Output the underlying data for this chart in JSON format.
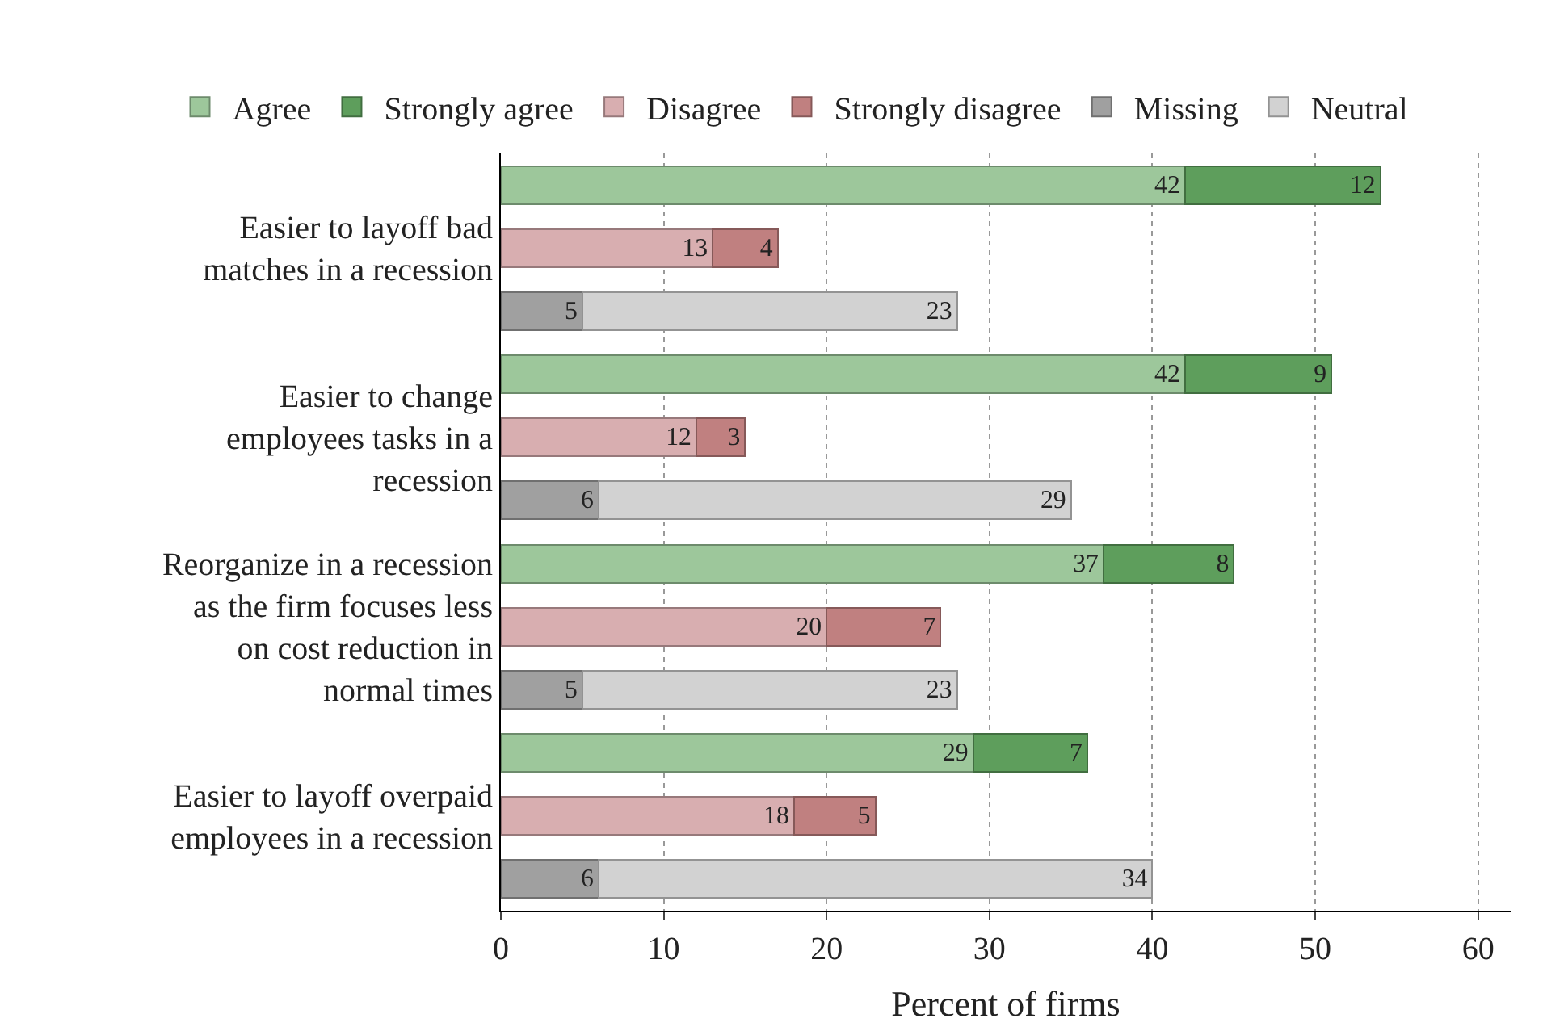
{
  "chart_data": {
    "type": "bar",
    "orientation": "horizontal",
    "stacked": true,
    "data_labels": true,
    "xlabel": "Percent of firms",
    "categories": [
      null,
      "Easier to layoff bad\nmatches in a recession",
      null,
      null,
      "Easier to change\nemployees tasks in a\nrecession",
      null,
      null,
      "Reorganize in a recession\nas the firm focuses less\non cost reduction in\nnormal times",
      null,
      null,
      "Easier to layoff overpaid\nemployees in a recession",
      null
    ],
    "series": [
      {
        "name": "Agree",
        "color": "#9dc79b",
        "values": [
          42,
          null,
          null,
          42,
          null,
          null,
          37,
          null,
          null,
          29,
          null,
          null
        ]
      },
      {
        "name": "Strongly agree",
        "color": "#5e9e5c",
        "values": [
          12,
          null,
          null,
          9,
          null,
          null,
          8,
          null,
          null,
          7,
          null,
          null
        ]
      },
      {
        "name": "Disagree",
        "color": "#d8aeb0",
        "values": [
          null,
          13,
          null,
          null,
          12,
          null,
          null,
          20,
          null,
          null,
          18,
          null
        ]
      },
      {
        "name": "Strongly disagree",
        "color": "#c08080",
        "values": [
          null,
          4,
          null,
          null,
          3,
          null,
          null,
          7,
          null,
          null,
          5,
          null
        ]
      },
      {
        "name": "Missing",
        "color": "#a0a0a0",
        "values": [
          null,
          null,
          5,
          null,
          null,
          6,
          null,
          null,
          5,
          null,
          null,
          6
        ]
      },
      {
        "name": "Neutral",
        "color": "#d2d2d2",
        "values": [
          null,
          null,
          23,
          null,
          null,
          29,
          null,
          null,
          23,
          null,
          null,
          34
        ]
      }
    ],
    "xlim": [
      0,
      62
    ],
    "xticks": [
      0,
      10,
      20,
      30,
      40,
      50,
      60
    ],
    "grid": "x",
    "legend": "top"
  }
}
